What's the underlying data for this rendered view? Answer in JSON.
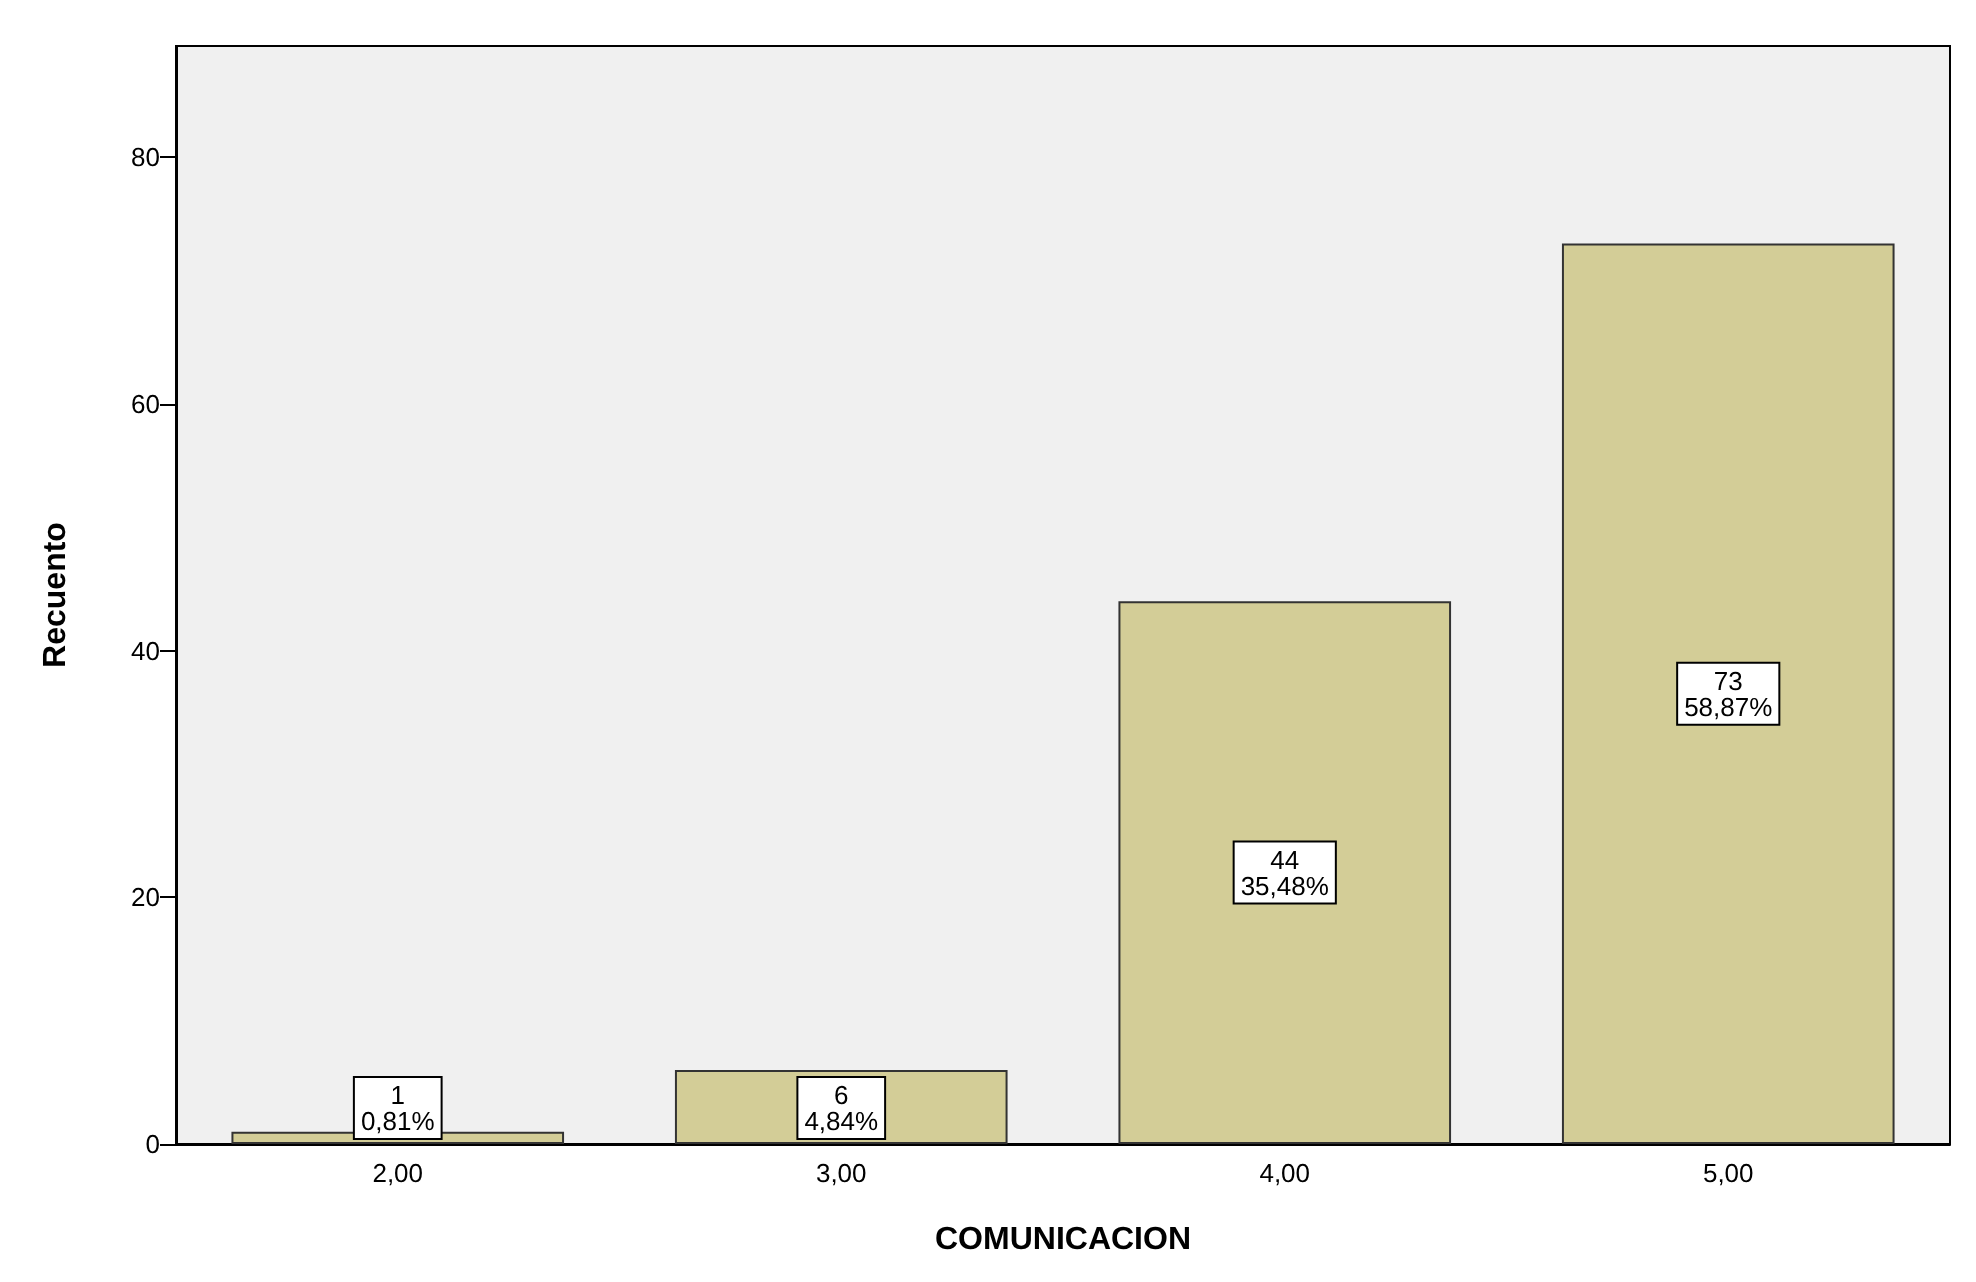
{
  "chart_data": {
    "type": "bar",
    "xlabel": "COMUNICACION",
    "ylabel": "Recuento",
    "categories": [
      "2,00",
      "3,00",
      "4,00",
      "5,00"
    ],
    "values": [
      1,
      6,
      44,
      73
    ],
    "value_labels": [
      "1\n0,81%",
      "6\n4,84%",
      "44\n35,48%",
      "73\n58,87%"
    ],
    "color": "#d3cd97",
    "ylim": [
      0,
      89
    ],
    "yticks": [
      0,
      20,
      40,
      60,
      80
    ],
    "grid": false
  }
}
